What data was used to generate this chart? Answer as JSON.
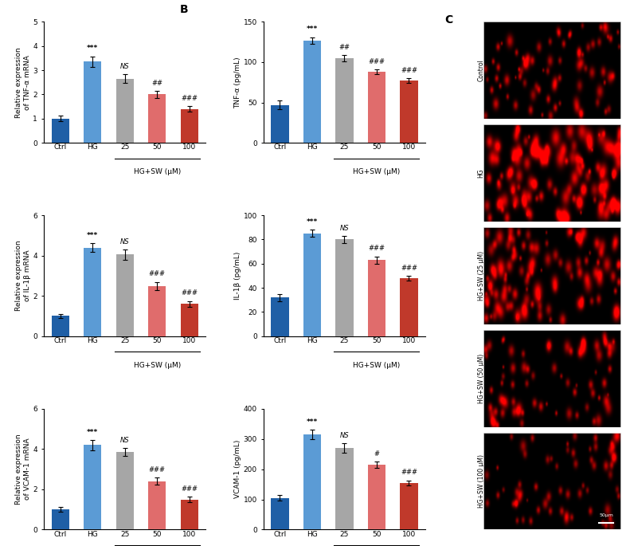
{
  "panel_A": {
    "charts": [
      {
        "ylabel": "Relative expression\nof TNF-α mRNA",
        "ylim": [
          0,
          5
        ],
        "yticks": [
          0,
          1,
          2,
          3,
          4,
          5
        ],
        "values": [
          1.0,
          3.35,
          2.65,
          2.0,
          1.4
        ],
        "errors": [
          0.12,
          0.22,
          0.18,
          0.15,
          0.12
        ],
        "sig_above_hg": "***",
        "sig_sw": [
          "NS",
          "##",
          "###"
        ]
      },
      {
        "ylabel": "Relative expression\nof IL-1β mRNA",
        "ylim": [
          0,
          6
        ],
        "yticks": [
          0,
          2,
          4,
          6
        ],
        "values": [
          1.0,
          4.4,
          4.05,
          2.5,
          1.6
        ],
        "errors": [
          0.1,
          0.2,
          0.25,
          0.2,
          0.15
        ],
        "sig_above_hg": "***",
        "sig_sw": [
          "NS",
          "###",
          "###"
        ]
      },
      {
        "ylabel": "Relative expression\nof VCAM-1 mRNA",
        "ylim": [
          0,
          6
        ],
        "yticks": [
          0,
          2,
          4,
          6
        ],
        "values": [
          1.0,
          4.2,
          3.85,
          2.4,
          1.5
        ],
        "errors": [
          0.12,
          0.25,
          0.2,
          0.18,
          0.12
        ],
        "sig_above_hg": "***",
        "sig_sw": [
          "NS",
          "###",
          "###"
        ]
      }
    ]
  },
  "panel_B": {
    "charts": [
      {
        "ylabel": "TNF-α (pg/mL)",
        "ylim": [
          0,
          150
        ],
        "yticks": [
          0,
          50,
          100,
          150
        ],
        "values": [
          47,
          127,
          105,
          88,
          77
        ],
        "errors": [
          5,
          4,
          4,
          3,
          3
        ],
        "sig_above_hg": "***",
        "sig_sw": [
          "##",
          "###",
          "###"
        ]
      },
      {
        "ylabel": "IL-1β (pg/mL)",
        "ylim": [
          0,
          100
        ],
        "yticks": [
          0,
          20,
          40,
          60,
          80,
          100
        ],
        "values": [
          32,
          85,
          80,
          63,
          48
        ],
        "errors": [
          3,
          3,
          3,
          3,
          2
        ],
        "sig_above_hg": "***",
        "sig_sw": [
          "NS",
          "###",
          "###"
        ]
      },
      {
        "ylabel": "VCAM-1 (pg/mL)",
        "ylim": [
          0,
          400
        ],
        "yticks": [
          0,
          100,
          200,
          300,
          400
        ],
        "values": [
          105,
          315,
          270,
          215,
          155
        ],
        "errors": [
          10,
          15,
          15,
          10,
          8
        ],
        "sig_above_hg": "***",
        "sig_sw": [
          "NS",
          "#",
          "###"
        ]
      }
    ]
  },
  "bar_colors": [
    "#1f5fa6",
    "#5b9bd5",
    "#a6a6a6",
    "#e06c6c",
    "#c0392b"
  ],
  "xlabel_main": "HG+SW (μM)",
  "xtick_labels": [
    "Ctrl",
    "HG",
    "25",
    "50",
    "100"
  ],
  "panel_C_labels": [
    "Control",
    "HG",
    "HG+SW (25 μM)",
    "HG+SW (50 μM)",
    "HG+SW (100 μM)"
  ],
  "fluorescence_params": [
    {
      "n_cells": 80,
      "r_mean": 3.5,
      "r_std": 1.0,
      "brightness": 0.85
    },
    {
      "n_cells": 130,
      "r_mean": 5.0,
      "r_std": 1.5,
      "brightness": 0.95
    },
    {
      "n_cells": 110,
      "r_mean": 4.5,
      "r_std": 1.2,
      "brightness": 0.9
    },
    {
      "n_cells": 75,
      "r_mean": 3.8,
      "r_std": 1.0,
      "brightness": 0.82
    },
    {
      "n_cells": 65,
      "r_mean": 3.5,
      "r_std": 0.9,
      "brightness": 0.78
    }
  ]
}
